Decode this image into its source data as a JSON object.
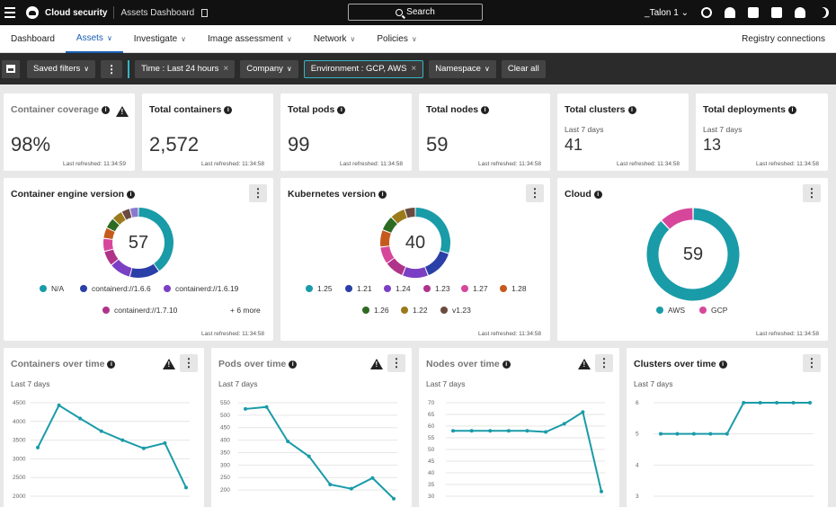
{
  "topbar": {
    "app_title": "Cloud security",
    "breadcrumb": "Assets Dashboard",
    "search_label": "Search",
    "user": "_Talon 1"
  },
  "nav": {
    "tabs": [
      {
        "label": "Dashboard",
        "chevron": false
      },
      {
        "label": "Assets",
        "chevron": true,
        "active": true
      },
      {
        "label": "Investigate",
        "chevron": true
      },
      {
        "label": "Image assessment",
        "chevron": true
      },
      {
        "label": "Network",
        "chevron": true
      },
      {
        "label": "Policies",
        "chevron": true
      }
    ],
    "registry": "Registry connections"
  },
  "filters": {
    "saved": "Saved filters",
    "time": "Time : Last 24 hours",
    "company": "Company",
    "environment": "Environment : GCP, AWS",
    "namespace": "Namespace",
    "clear": "Clear all"
  },
  "stats": [
    {
      "title": "Container coverage",
      "value": "98%",
      "sub": "",
      "refreshed": "Last refreshed: 11:34:59",
      "muted": true
    },
    {
      "title": "Total containers",
      "value": "2,572",
      "sub": "",
      "refreshed": "Last refreshed: 11:34:58"
    },
    {
      "title": "Total pods",
      "value": "99",
      "sub": "",
      "refreshed": "Last refreshed: 11:34:58"
    },
    {
      "title": "Total nodes",
      "value": "59",
      "sub": "",
      "refreshed": "Last refreshed: 11:34:58"
    },
    {
      "title": "Total clusters",
      "value": "41",
      "sub": "Last 7 days",
      "refreshed": "Last refreshed: 11:34:58"
    },
    {
      "title": "Total deployments",
      "value": "13",
      "sub": "Last 7 days",
      "refreshed": "Last refreshed: 11:34:58"
    }
  ],
  "donuts": {
    "engine": {
      "title": "Container engine version",
      "center": "57",
      "refreshed": "Last refreshed: 11:34:58",
      "legend": [
        {
          "label": "N/A",
          "color": "#1a9ba8"
        },
        {
          "label": "containerd://1.6.6",
          "color": "#2b3fa8"
        },
        {
          "label": "containerd://1.6.19",
          "color": "#7b3fc4"
        },
        {
          "label": "containerd://1.7.10",
          "color": "#b0338a"
        }
      ],
      "more": "+ 6 more",
      "segments": [
        {
          "v": 40,
          "c": "#1a9ba8"
        },
        {
          "v": 14,
          "c": "#2b3fa8"
        },
        {
          "v": 10,
          "c": "#7b3fc4"
        },
        {
          "v": 7,
          "c": "#b0338a"
        },
        {
          "v": 6,
          "c": "#d6479b"
        },
        {
          "v": 5,
          "c": "#c65a1e"
        },
        {
          "v": 5,
          "c": "#2d6a22"
        },
        {
          "v": 5,
          "c": "#9a7a1a"
        },
        {
          "v": 4,
          "c": "#6b4a3f"
        },
        {
          "v": 4,
          "c": "#8a7acf"
        }
      ]
    },
    "k8s": {
      "title": "Kubernetes version",
      "center": "40",
      "refreshed": "Last refreshed: 11:34:58",
      "legend": [
        {
          "label": "1.25",
          "color": "#1a9ba8"
        },
        {
          "label": "1.21",
          "color": "#2b3fa8"
        },
        {
          "label": "1.24",
          "color": "#7b3fc4"
        },
        {
          "label": "1.23",
          "color": "#b0338a"
        },
        {
          "label": "1.27",
          "color": "#d6479b"
        },
        {
          "label": "1.28",
          "color": "#c65a1e"
        },
        {
          "label": "1.26",
          "color": "#2d6a22"
        },
        {
          "label": "1.22",
          "color": "#9a7a1a"
        },
        {
          "label": "v1.23",
          "color": "#6b4a3f"
        }
      ],
      "segments": [
        {
          "v": 30,
          "c": "#1a9ba8"
        },
        {
          "v": 14,
          "c": "#2b3fa8"
        },
        {
          "v": 12,
          "c": "#7b3fc4"
        },
        {
          "v": 9,
          "c": "#b0338a"
        },
        {
          "v": 8,
          "c": "#d6479b"
        },
        {
          "v": 8,
          "c": "#c65a1e"
        },
        {
          "v": 7,
          "c": "#2d6a22"
        },
        {
          "v": 7,
          "c": "#9a7a1a"
        },
        {
          "v": 5,
          "c": "#6b4a3f"
        }
      ]
    },
    "cloud": {
      "title": "Cloud",
      "center": "59",
      "refreshed": "Last refreshed: 11:34:58",
      "legend": [
        {
          "label": "AWS",
          "color": "#1a9ba8"
        },
        {
          "label": "GCP",
          "color": "#d6479b"
        }
      ],
      "segments": [
        {
          "v": 88,
          "c": "#1a9ba8"
        },
        {
          "v": 12,
          "c": "#d6479b"
        }
      ]
    }
  },
  "chart_data": [
    {
      "type": "line",
      "title": "Containers over time",
      "subtitle": "Last 7 days",
      "yticks": [
        "4500",
        "4000",
        "3500",
        "3000",
        "2500",
        "2000"
      ],
      "ylim": [
        2000,
        4500
      ],
      "values": [
        3300,
        4430,
        4080,
        3740,
        3500,
        3280,
        3420,
        2230
      ]
    },
    {
      "type": "line",
      "title": "Pods over time",
      "subtitle": "Last 7 days",
      "yticks": [
        "550",
        "500",
        "450",
        "400",
        "350",
        "300",
        "250",
        "200"
      ],
      "ylim": [
        175,
        550
      ],
      "values": [
        525,
        533,
        395,
        335,
        222,
        205,
        248,
        165
      ]
    },
    {
      "type": "line",
      "title": "Nodes over time",
      "subtitle": "Last 7 days",
      "yticks": [
        "70",
        "65",
        "60",
        "55",
        "50",
        "45",
        "40",
        "35",
        "30"
      ],
      "ylim": [
        30,
        70
      ],
      "values": [
        58,
        58,
        58,
        58,
        58,
        57.5,
        61,
        66,
        32
      ]
    },
    {
      "type": "line",
      "title": "Clusters over time",
      "subtitle": "Last 7 days",
      "yticks": [
        "6",
        "5",
        "4",
        "3"
      ],
      "ylim": [
        3,
        6
      ],
      "values": [
        5,
        5,
        5,
        5,
        5,
        6,
        6,
        6,
        6,
        6
      ]
    }
  ]
}
